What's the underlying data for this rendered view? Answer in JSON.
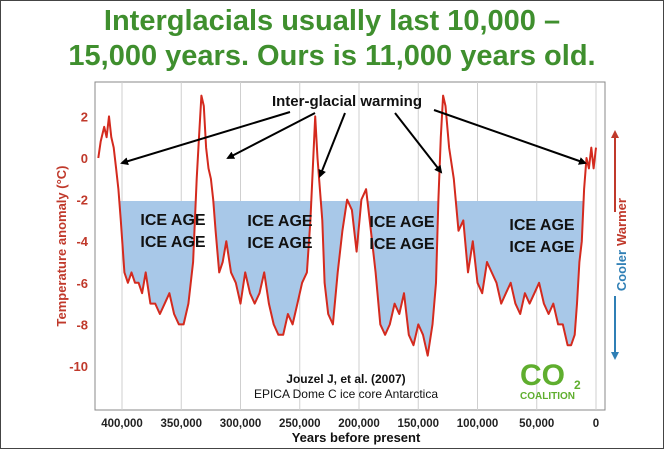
{
  "title_line1": "Interglacials usually last 10,000 –",
  "title_line2": "15,000 years. Ours is 11,000 years old.",
  "colors": {
    "title": "#3f8f2e",
    "series": "#d42a1e",
    "ice_fill": "#a8c8e8",
    "warm_axis": "#c0392b",
    "cool_axis": "#2f7fb5"
  },
  "chart_data": {
    "type": "line",
    "title": "",
    "xlabel": "Years before present",
    "ylabel": "Temperature anomaly (°C)",
    "xlim": [
      420000,
      0
    ],
    "ylim": [
      -11,
      3
    ],
    "x_ticks": [
      400000,
      350000,
      300000,
      250000,
      200000,
      150000,
      100000,
      50000,
      0
    ],
    "x_tick_labels": [
      "400,000",
      "350,000",
      "300,000",
      "250,000",
      "200,000",
      "150,000",
      "100,000",
      "50,000",
      "0"
    ],
    "y_ticks": [
      2,
      0,
      -2,
      -4,
      -6,
      -8,
      -10
    ],
    "y_tick_labels": [
      "2",
      "0",
      "-2",
      "-4",
      "-6",
      "-8",
      "-10"
    ],
    "grid": "vertical",
    "series": [
      {
        "x": [
          420000,
          418000,
          415000,
          413000,
          411000,
          409000,
          407000,
          405000,
          403000,
          401000,
          398000,
          395000,
          392000,
          389000,
          386000,
          383000,
          380000,
          376000,
          372000,
          368000,
          364000,
          360000,
          356000,
          352000,
          348000,
          344000,
          340000,
          337000,
          335000,
          333000,
          331000,
          329000,
          327000,
          325000,
          323000,
          321000,
          318000,
          315000,
          312000,
          308000,
          304000,
          300000,
          296000,
          292000,
          288000,
          284000,
          280000,
          276000,
          272000,
          268000,
          264000,
          260000,
          256000,
          252000,
          248000,
          244000,
          241000,
          239000,
          237000,
          235000,
          233000,
          231000,
          229000,
          226000,
          222000,
          218000,
          214000,
          210000,
          206000,
          202000,
          198000,
          194000,
          190000,
          186000,
          182000,
          178000,
          174000,
          170000,
          166000,
          162000,
          158000,
          154000,
          150000,
          146000,
          142000,
          138000,
          135000,
          133000,
          131000,
          129000,
          127000,
          124000,
          120000,
          116000,
          112000,
          108000,
          104000,
          100000,
          96000,
          92000,
          88000,
          84000,
          80000,
          76000,
          72000,
          68000,
          64000,
          60000,
          56000,
          52000,
          48000,
          44000,
          40000,
          36000,
          32000,
          28000,
          24000,
          21000,
          18000,
          16000,
          14000,
          12000,
          10000,
          8000,
          6000,
          4000,
          2000,
          0
        ],
        "y": [
          0.0,
          0.8,
          1.5,
          1.0,
          2.0,
          1.0,
          0.5,
          -0.5,
          -1.5,
          -3.0,
          -5.5,
          -6.0,
          -5.5,
          -6.0,
          -6.0,
          -6.5,
          -5.5,
          -7.0,
          -7.0,
          -7.5,
          -7.0,
          -6.5,
          -7.5,
          -8.0,
          -8.0,
          -7.0,
          -5.0,
          -1.0,
          1.0,
          3.0,
          2.5,
          0.5,
          -0.5,
          -1.0,
          -2.0,
          -3.5,
          -5.5,
          -5.0,
          -4.0,
          -5.5,
          -6.0,
          -7.0,
          -5.5,
          -6.5,
          -7.0,
          -6.5,
          -5.5,
          -7.0,
          -8.0,
          -8.5,
          -8.5,
          -7.5,
          -8.0,
          -7.0,
          -6.0,
          -5.5,
          -3.0,
          -0.5,
          2.0,
          0.0,
          -1.5,
          -3.0,
          -6.0,
          -7.5,
          -8.0,
          -5.5,
          -3.5,
          -2.0,
          -2.5,
          -4.5,
          -2.0,
          -1.5,
          -3.5,
          -5.5,
          -8.0,
          -8.5,
          -8.0,
          -7.0,
          -7.5,
          -6.5,
          -8.5,
          -9.0,
          -8.0,
          -8.5,
          -9.5,
          -8.0,
          -6.0,
          -2.0,
          1.0,
          3.0,
          2.5,
          0.5,
          -1.0,
          -3.5,
          -3.0,
          -5.5,
          -4.0,
          -6.0,
          -6.5,
          -5.0,
          -5.5,
          -6.0,
          -7.0,
          -6.5,
          -6.0,
          -7.0,
          -7.5,
          -6.5,
          -7.0,
          -6.5,
          -6.0,
          -7.0,
          -7.5,
          -7.0,
          -8.0,
          -8.0,
          -9.0,
          -9.0,
          -8.5,
          -7.0,
          -5.0,
          -4.0,
          -1.5,
          0.0,
          -0.5,
          0.5,
          -0.5,
          0.5
        ]
      }
    ],
    "annotations": [
      "Inter-glacial warming",
      "ICE AGE",
      "ICE AGE",
      "ICE AGE",
      "ICE AGE"
    ],
    "right_axis_labels": {
      "warm": "Warmer",
      "cool": "Cooler"
    },
    "citation": [
      "Jouzel J, et al. (2007)",
      "EPICA Dome C ice core Antarctica"
    ],
    "logo": {
      "letters": "CO",
      "subscript": "2",
      "word": "COALITION"
    }
  }
}
